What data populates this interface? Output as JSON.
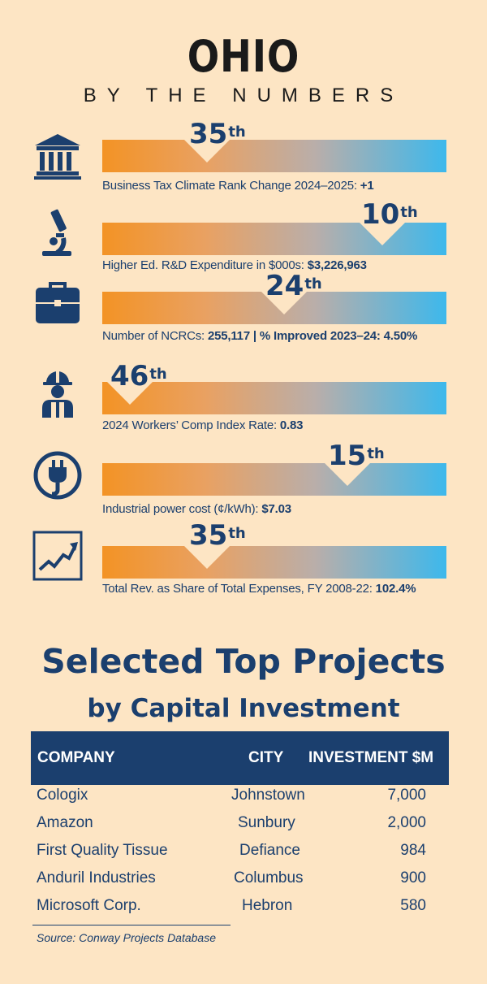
{
  "header": {
    "title": "OHIO",
    "subtitle": "BY THE NUMBERS"
  },
  "metrics": [
    {
      "icon": "bank-building-icon",
      "rank": "35",
      "suffix": "th",
      "rank_value": 35,
      "caption_label": "Business Tax Climate Rank Change 2024–2025:",
      "caption_value": " +1"
    },
    {
      "icon": "microscope-icon",
      "rank": "10",
      "suffix": "th",
      "rank_value": 10,
      "caption_label": "Higher Ed. R&D Expenditure in $000s:",
      "caption_value": " $3,226,963"
    },
    {
      "icon": "briefcase-icon",
      "rank": "24",
      "suffix": "th",
      "rank_value": 24,
      "caption_label": "Number of NCRCs:",
      "caption_value": " 255,117 | % Improved 2023–24: 4.50%"
    },
    {
      "icon": "hard-hat-worker-icon",
      "rank": "46",
      "suffix": "th",
      "rank_value": 46,
      "caption_label": "2024 Workers’ Comp Index Rate:",
      "caption_value": " 0.83"
    },
    {
      "icon": "power-plug-icon",
      "rank": "15",
      "suffix": "th",
      "rank_value": 15,
      "caption_label": "Industrial power cost (¢/kWh):",
      "caption_value": " $7.03"
    },
    {
      "icon": "trend-chart-icon",
      "rank": "35",
      "suffix": "th",
      "rank_value": 35,
      "caption_label": "Total Rev. as Share of Total Expenses, FY 2008-22:",
      "caption_value": " 102.4%"
    }
  ],
  "projects": {
    "title": "Selected Top Projects",
    "subtitle": "by Capital Investment",
    "columns": {
      "company": "COMPANY",
      "city": "CITY",
      "investment": "INVESTMENT $M"
    },
    "rows": [
      {
        "company": "Cologix",
        "city": "Johnstown",
        "investment": "7,000"
      },
      {
        "company": "Amazon",
        "city": "Sunbury",
        "investment": "2,000"
      },
      {
        "company": "First Quality Tissue",
        "city": "Defiance",
        "investment": "984"
      },
      {
        "company": "Anduril Industries",
        "city": "Columbus",
        "investment": "900"
      },
      {
        "company": "Microsoft Corp.",
        "city": "Hebron",
        "investment": "580"
      }
    ],
    "source": "Source: Conway Projects Database"
  },
  "colors": {
    "navy": "#1b3f6e",
    "orange": "#f39325",
    "sky": "#3db8ec",
    "background": "#fde5c4"
  }
}
